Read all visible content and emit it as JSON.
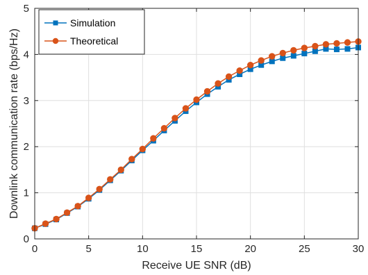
{
  "chart_data": {
    "type": "line",
    "title": "",
    "xlabel": "Receive UE SNR (dB)",
    "ylabel": "Downlink communication rate (bps/Hz)",
    "xlim": [
      0,
      30
    ],
    "ylim": [
      0,
      5
    ],
    "xticks": [
      0,
      5,
      10,
      15,
      20,
      25,
      30
    ],
    "yticks": [
      0,
      1,
      2,
      3,
      4,
      5
    ],
    "grid": true,
    "legend_position": "top-left",
    "x": [
      0,
      1,
      2,
      3,
      4,
      5,
      6,
      7,
      8,
      9,
      10,
      11,
      12,
      13,
      14,
      15,
      16,
      17,
      18,
      19,
      20,
      21,
      22,
      23,
      24,
      25,
      26,
      27,
      28,
      29,
      30
    ],
    "series": [
      {
        "name": "Simulation",
        "color": "#0072BD",
        "marker": "square",
        "values": [
          0.23,
          0.32,
          0.42,
          0.56,
          0.7,
          0.87,
          1.06,
          1.27,
          1.48,
          1.7,
          1.92,
          2.13,
          2.35,
          2.56,
          2.77,
          2.96,
          3.14,
          3.3,
          3.45,
          3.57,
          3.68,
          3.77,
          3.85,
          3.92,
          3.97,
          4.02,
          4.07,
          4.12,
          4.11,
          4.12,
          4.15
        ]
      },
      {
        "name": "Theoretical",
        "color": "#D95319",
        "marker": "circle",
        "values": [
          0.23,
          0.33,
          0.43,
          0.57,
          0.71,
          0.89,
          1.08,
          1.29,
          1.5,
          1.73,
          1.95,
          2.18,
          2.4,
          2.62,
          2.83,
          3.02,
          3.2,
          3.37,
          3.52,
          3.65,
          3.77,
          3.87,
          3.96,
          4.03,
          4.09,
          4.14,
          4.18,
          4.22,
          4.24,
          4.26,
          4.28
        ]
      }
    ]
  }
}
